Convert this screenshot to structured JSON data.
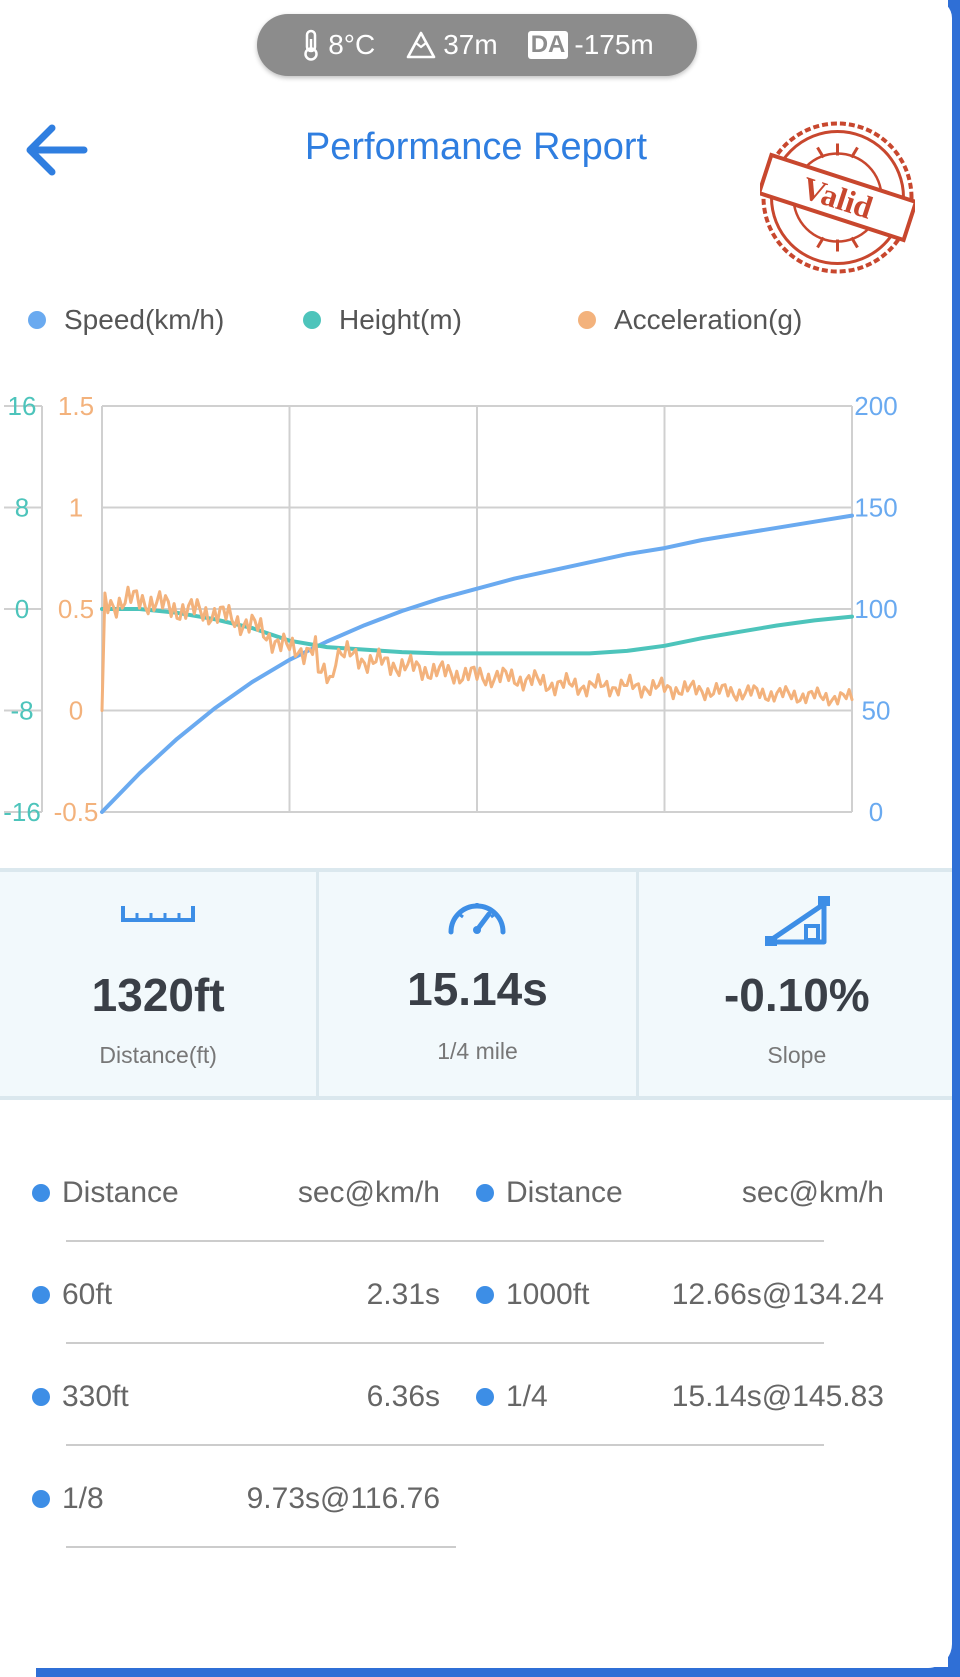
{
  "status_pill": {
    "temperature": "8°C",
    "altitude": "37m",
    "da_badge": "DA",
    "density_altitude": "-175m"
  },
  "header": {
    "title": "Performance Report",
    "stamp_text": "Valid"
  },
  "legend": [
    {
      "label": "Speed(km/h)",
      "color": "#6aaaf0"
    },
    {
      "label": "Height(m)",
      "color": "#4dc4bb"
    },
    {
      "label": "Acceleration(g)",
      "color": "#f3b27c"
    }
  ],
  "chart_data": {
    "type": "line",
    "legend_placement": "top",
    "grid": true,
    "x": [
      0,
      0.05,
      0.1,
      0.15,
      0.2,
      0.25,
      0.3,
      0.35,
      0.4,
      0.45,
      0.5,
      0.55,
      0.6,
      0.65,
      0.7,
      0.75,
      0.8,
      0.85,
      0.9,
      0.95,
      1.0
    ],
    "axes": {
      "height": {
        "ticks": [
          "16",
          "8",
          "0",
          "-8",
          "-16"
        ],
        "min": -16,
        "max": 16
      },
      "acceleration": {
        "ticks": [
          "1.5",
          "1",
          "0.5",
          "0",
          "-0.5"
        ],
        "min": -0.5,
        "max": 1.5
      },
      "speed": {
        "ticks": [
          "200",
          "150",
          "100",
          "50",
          "0"
        ],
        "min": 0,
        "max": 200
      }
    },
    "series": [
      {
        "name": "Speed(km/h)",
        "axis": "speed",
        "color": "#6aaaf0",
        "values": [
          0,
          19,
          36,
          51,
          64,
          75,
          84,
          92,
          99,
          105,
          110,
          115,
          119,
          123,
          127,
          130,
          134,
          137,
          140,
          143,
          146
        ]
      },
      {
        "name": "Height(m)",
        "axis": "height",
        "color": "#4dc4bb",
        "values": [
          0,
          0,
          -0.3,
          -0.8,
          -1.5,
          -2.5,
          -3.0,
          -3.2,
          -3.4,
          -3.5,
          -3.5,
          -3.5,
          -3.5,
          -3.5,
          -3.3,
          -2.9,
          -2.3,
          -1.8,
          -1.3,
          -0.9,
          -0.6
        ]
      },
      {
        "name": "Acceleration(g)",
        "axis": "acceleration",
        "color": "#f3b27c",
        "values": [
          0.52,
          0.55,
          0.5,
          0.48,
          0.42,
          0.3,
          0.3,
          0.25,
          0.22,
          0.19,
          0.17,
          0.16,
          0.13,
          0.12,
          0.12,
          0.11,
          0.1,
          0.09,
          0.08,
          0.07,
          0.06
        ]
      }
    ]
  },
  "stats": [
    {
      "icon": "ruler-icon",
      "value": "1320ft",
      "label": "Distance(ft)"
    },
    {
      "icon": "speedometer-icon",
      "value": "15.14s",
      "label": "1/4 mile"
    },
    {
      "icon": "slope-icon",
      "value": "-0.10%",
      "label": "Slope"
    }
  ],
  "splits": {
    "headers": {
      "distance": "Distance",
      "result": "sec@km/h"
    },
    "left": [
      {
        "distance": "60ft",
        "result": "2.31s"
      },
      {
        "distance": "330ft",
        "result": "6.36s"
      },
      {
        "distance": "1/8",
        "result": "9.73s@116.76"
      }
    ],
    "right": [
      {
        "distance": "1000ft",
        "result": "12.66s@134.24"
      },
      {
        "distance": "1/4",
        "result": "15.14s@145.83"
      }
    ]
  },
  "colors": {
    "accent": "#2f7ee0",
    "stamp": "#c8472e",
    "pill_bg": "#8c8c8c"
  }
}
